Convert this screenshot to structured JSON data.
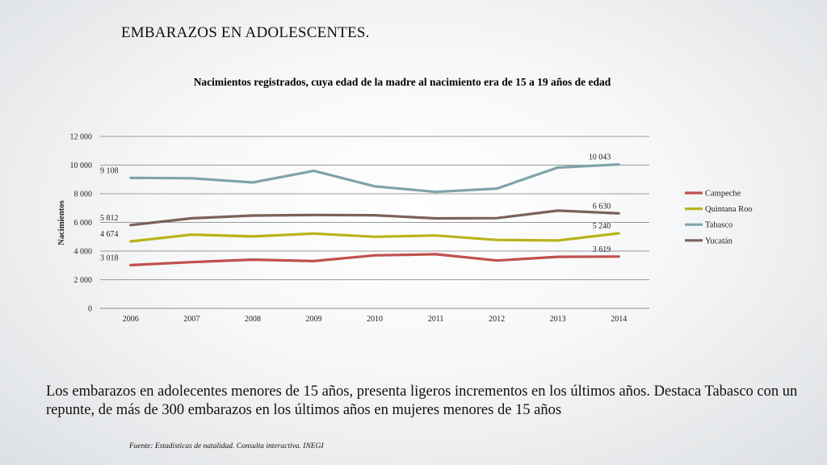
{
  "slide": {
    "title": "EMBARAZOS EN ADOLESCENTES.",
    "body": "Los embarazos en adolecentes menores de 15 años, presenta ligeros incrementos en los últimos años. Destaca Tabasco con un repunte, de más de 300 embarazos  en los últimos años en mujeres menores de 15 años",
    "source": "Fuente:  Estadísticas de  natalidad. Consulta interactiva. INEGI"
  },
  "chart_data": {
    "type": "line",
    "title": "Nacimientos registrados, cuya edad de la madre al nacimiento era de 15 a 19 años de edad",
    "xlabel": "",
    "ylabel": "Nacimientos",
    "categories": [
      "2006",
      "2007",
      "2008",
      "2009",
      "2010",
      "2011",
      "2012",
      "2013",
      "2014"
    ],
    "ylim": [
      0,
      12000
    ],
    "yticks": [
      0,
      2000,
      4000,
      6000,
      8000,
      10000,
      12000
    ],
    "ytick_labels": [
      "0",
      "2 000",
      "4 000",
      "6 000",
      "8 000",
      "10 000",
      "12 000"
    ],
    "grid": "horizontal",
    "legend": "right",
    "series": [
      {
        "name": "Campeche",
        "color": "#c0504d",
        "values": [
          3018,
          3230,
          3400,
          3300,
          3700,
          3780,
          3340,
          3600,
          3619
        ],
        "first_label": "3 018",
        "last_label": "3 619"
      },
      {
        "name": "Quintana Roo",
        "color": "#b9b31a",
        "values": [
          4674,
          5150,
          5020,
          5220,
          5000,
          5090,
          4780,
          4740,
          5240
        ],
        "first_label": "4 674",
        "last_label": "5 240"
      },
      {
        "name": "Tabasco",
        "color": "#7fa3aa",
        "values": [
          9108,
          9080,
          8790,
          9600,
          8520,
          8130,
          8360,
          9830,
          10043
        ],
        "first_label": "9 108",
        "last_label": "10 043"
      },
      {
        "name": "Yucatán",
        "color": "#7b6259",
        "values": [
          5812,
          6290,
          6480,
          6520,
          6500,
          6280,
          6300,
          6820,
          6630
        ],
        "first_label": "5 812",
        "last_label": "6 630"
      }
    ]
  }
}
